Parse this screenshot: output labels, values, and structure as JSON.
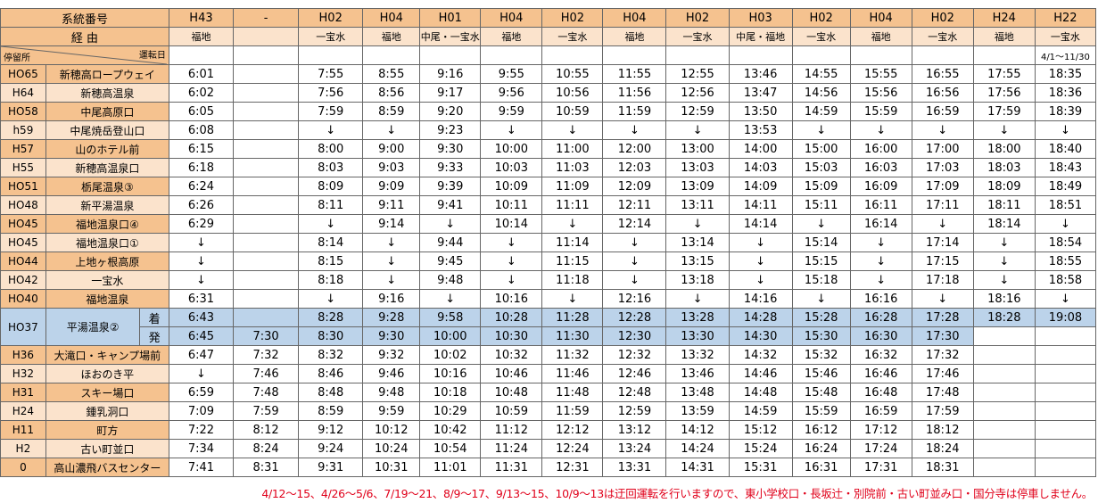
{
  "header": {
    "system_label": "系統番号",
    "route_label": "経 由",
    "stop_label": "停留所",
    "operation_label": "運転日",
    "system_codes": [
      "H43",
      "-",
      "H02",
      "H04",
      "H01",
      "H04",
      "H02",
      "H04",
      "H02",
      "H03",
      "H02",
      "H04",
      "H02",
      "H24",
      "H22"
    ],
    "routes": [
      "福地",
      "",
      "一宝水",
      "福地",
      "中尾・一宝水",
      "福地",
      "一宝水",
      "福地",
      "一宝水",
      "中尾・福地",
      "一宝水",
      "福地",
      "一宝水",
      "福地",
      "一宝水"
    ],
    "operation_days": [
      "",
      "",
      "",
      "",
      "",
      "",
      "",
      "",
      "",
      "",
      "",
      "",
      "",
      "",
      "4/1～11/30"
    ]
  },
  "rows_upper": [
    {
      "code": "HO65",
      "name": "新穂高ロープウェイ",
      "times": [
        "6:01",
        "",
        "7:55",
        "8:55",
        "9:16",
        "9:55",
        "10:55",
        "11:55",
        "12:55",
        "13:46",
        "14:55",
        "15:55",
        "16:55",
        "17:55",
        "18:35"
      ]
    },
    {
      "code": "H64",
      "name": "新穂高温泉",
      "times": [
        "6:02",
        "",
        "7:56",
        "8:56",
        "9:17",
        "9:56",
        "10:56",
        "11:56",
        "12:56",
        "13:47",
        "14:56",
        "15:56",
        "16:56",
        "17:56",
        "18:36"
      ]
    },
    {
      "code": "HO58",
      "name": "中尾高原口",
      "times": [
        "6:05",
        "",
        "7:59",
        "8:59",
        "9:20",
        "9:59",
        "10:59",
        "11:59",
        "12:59",
        "13:50",
        "14:59",
        "15:59",
        "16:59",
        "17:59",
        "18:39"
      ]
    },
    {
      "code": "h59",
      "name": "中尾焼岳登山口",
      "times": [
        "6:08",
        "",
        "↓",
        "↓",
        "9:23",
        "↓",
        "↓",
        "↓",
        "↓",
        "13:53",
        "↓",
        "↓",
        "↓",
        "↓",
        "↓"
      ]
    },
    {
      "code": "H57",
      "name": "山のホテル前",
      "times": [
        "6:15",
        "",
        "8:00",
        "9:00",
        "9:30",
        "10:00",
        "11:00",
        "12:00",
        "13:00",
        "14:00",
        "15:00",
        "16:00",
        "17:00",
        "18:00",
        "18:40"
      ]
    },
    {
      "code": "H55",
      "name": "新穂高温泉口",
      "times": [
        "6:18",
        "",
        "8:03",
        "9:03",
        "9:33",
        "10:03",
        "11:03",
        "12:03",
        "13:03",
        "14:03",
        "15:03",
        "16:03",
        "17:03",
        "18:03",
        "18:43"
      ]
    },
    {
      "code": "HO51",
      "name": "栃尾温泉③",
      "times": [
        "6:24",
        "",
        "8:09",
        "9:09",
        "9:39",
        "10:09",
        "11:09",
        "12:09",
        "13:09",
        "14:09",
        "15:09",
        "16:09",
        "17:09",
        "18:09",
        "18:49"
      ]
    },
    {
      "code": "HO48",
      "name": "新平湯温泉",
      "times": [
        "6:26",
        "",
        "8:11",
        "9:11",
        "9:41",
        "10:11",
        "11:11",
        "12:11",
        "13:11",
        "14:11",
        "15:11",
        "16:11",
        "17:11",
        "18:11",
        "18:51"
      ]
    },
    {
      "code": "HO45",
      "name": "福地温泉口④",
      "times": [
        "6:29",
        "",
        "↓",
        "9:14",
        "↓",
        "10:14",
        "↓",
        "12:14",
        "↓",
        "14:14",
        "↓",
        "16:14",
        "↓",
        "18:14",
        "↓"
      ]
    },
    {
      "code": "HO45",
      "name": "福地温泉口①",
      "times": [
        "↓",
        "",
        "8:14",
        "↓",
        "9:44",
        "↓",
        "11:14",
        "↓",
        "13:14",
        "↓",
        "15:14",
        "↓",
        "17:14",
        "↓",
        "18:54"
      ]
    },
    {
      "code": "HO44",
      "name": "上地ヶ根高原",
      "times": [
        "↓",
        "",
        "8:15",
        "↓",
        "9:45",
        "↓",
        "11:15",
        "↓",
        "13:15",
        "↓",
        "15:15",
        "↓",
        "17:15",
        "↓",
        "18:55"
      ]
    },
    {
      "code": "HO42",
      "name": "一宝水",
      "times": [
        "↓",
        "",
        "8:18",
        "↓",
        "9:48",
        "↓",
        "11:18",
        "↓",
        "13:18",
        "↓",
        "15:18",
        "↓",
        "17:18",
        "↓",
        "18:58"
      ]
    },
    {
      "code": "HO40",
      "name": "福地温泉",
      "times": [
        "6:31",
        "",
        "↓",
        "9:16",
        "↓",
        "10:16",
        "↓",
        "12:16",
        "↓",
        "14:16",
        "↓",
        "16:16",
        "↓",
        "18:16",
        "↓"
      ]
    }
  ],
  "hirayu": {
    "code": "HO37",
    "name": "平湯温泉②",
    "arrive_label": "着",
    "depart_label": "発",
    "arrive_times": [
      "6:43",
      "",
      "8:28",
      "9:28",
      "9:58",
      "10:28",
      "11:28",
      "12:28",
      "13:28",
      "14:28",
      "15:28",
      "16:28",
      "17:28",
      "18:28",
      "19:08"
    ],
    "depart_times": [
      "6:45",
      "7:30",
      "8:30",
      "9:30",
      "10:00",
      "10:30",
      "11:30",
      "12:30",
      "13:30",
      "14:30",
      "15:30",
      "16:30",
      "17:30",
      "",
      ""
    ]
  },
  "rows_lower": [
    {
      "code": "H36",
      "name": "大滝口・キャンプ場前",
      "times": [
        "6:47",
        "7:32",
        "8:32",
        "9:32",
        "10:02",
        "10:32",
        "11:32",
        "12:32",
        "13:32",
        "14:32",
        "15:32",
        "16:32",
        "17:32",
        "",
        ""
      ]
    },
    {
      "code": "H32",
      "name": "ほおのき平",
      "times": [
        "↓",
        "7:46",
        "8:46",
        "9:46",
        "10:16",
        "10:46",
        "11:46",
        "12:46",
        "13:46",
        "14:46",
        "15:46",
        "16:46",
        "17:46",
        "",
        ""
      ]
    },
    {
      "code": "H31",
      "name": "スキー場口",
      "times": [
        "6:59",
        "7:48",
        "8:48",
        "9:48",
        "10:18",
        "10:48",
        "11:48",
        "12:48",
        "13:48",
        "14:48",
        "15:48",
        "16:48",
        "17:48",
        "",
        ""
      ]
    },
    {
      "code": "H24",
      "name": "鍾乳洞口",
      "times": [
        "7:09",
        "7:59",
        "8:59",
        "9:59",
        "10:29",
        "10:59",
        "11:59",
        "12:59",
        "13:59",
        "14:59",
        "15:59",
        "16:59",
        "17:59",
        "",
        ""
      ]
    },
    {
      "code": "H11",
      "name": "町方",
      "times": [
        "7:22",
        "8:12",
        "9:12",
        "10:12",
        "10:42",
        "11:12",
        "12:12",
        "13:12",
        "14:12",
        "15:12",
        "16:12",
        "17:12",
        "18:12",
        "",
        ""
      ]
    },
    {
      "code": "H2",
      "name": "古い町並口",
      "times": [
        "7:34",
        "8:24",
        "9:24",
        "10:24",
        "10:54",
        "11:24",
        "12:24",
        "13:24",
        "14:24",
        "15:24",
        "16:24",
        "17:24",
        "18:24",
        "",
        ""
      ]
    },
    {
      "code": "0",
      "name": "高山濃飛バスセンター",
      "times": [
        "7:41",
        "8:31",
        "9:31",
        "10:31",
        "11:01",
        "11:31",
        "12:31",
        "13:31",
        "14:31",
        "15:31",
        "16:31",
        "17:31",
        "18:31",
        "",
        ""
      ]
    }
  ],
  "footnote": "4/12～15、4/26～5/6、7/19～21、8/9～17、9/13～15、10/9～13は迂回運転を行いますので、東小学校口・長坂辻・別院前・古い町並み口・国分寺は停車しません。"
}
